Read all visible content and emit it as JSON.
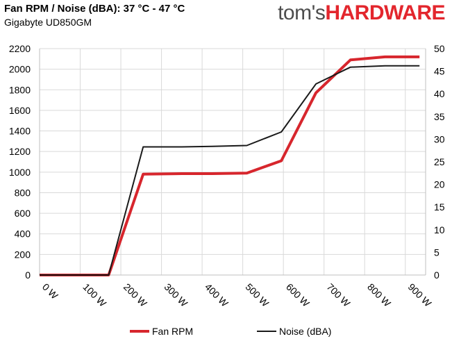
{
  "header": {
    "title": "Fan RPM / Noise (dBA): 37 °C - 47 °C",
    "subtitle": "Gigabyte UD850GM",
    "brand_left": "tom's",
    "brand_right": "HARDWARE"
  },
  "colors": {
    "fan": "#d7262d",
    "noise": "#1a1a1a",
    "grid": "#d9d9d9",
    "axis": "#bfbfbf"
  },
  "chart_data": {
    "type": "line",
    "x_tick_labels": [
      "0 W",
      "100 W",
      "200 W",
      "300 W",
      "400 W",
      "500 W",
      "600 W",
      "700 W",
      "800 W",
      "900 W"
    ],
    "xlim": [
      0,
      950
    ],
    "y_left": {
      "ylim": [
        0,
        2200
      ],
      "step": 200
    },
    "y_right": {
      "ylim": [
        0,
        50
      ],
      "step": 5
    },
    "grid": true,
    "legend_position": "bottom",
    "series": [
      {
        "name": "Fan RPM",
        "axis": "left",
        "color": "#d7262d",
        "x": [
          0,
          100,
          170,
          255,
          350,
          425,
          510,
          595,
          680,
          765,
          850,
          935
        ],
        "y": [
          0,
          0,
          0,
          980,
          985,
          985,
          990,
          1110,
          1770,
          2090,
          2120,
          2120
        ]
      },
      {
        "name": "Noise (dBA)",
        "axis": "right",
        "color": "#1a1a1a",
        "x": [
          0,
          100,
          170,
          255,
          350,
          425,
          510,
          595,
          680,
          765,
          850,
          935
        ],
        "y": [
          0,
          0,
          0,
          28.3,
          28.3,
          28.4,
          28.6,
          31.6,
          42.2,
          45.9,
          46.2,
          46.2
        ]
      }
    ]
  }
}
